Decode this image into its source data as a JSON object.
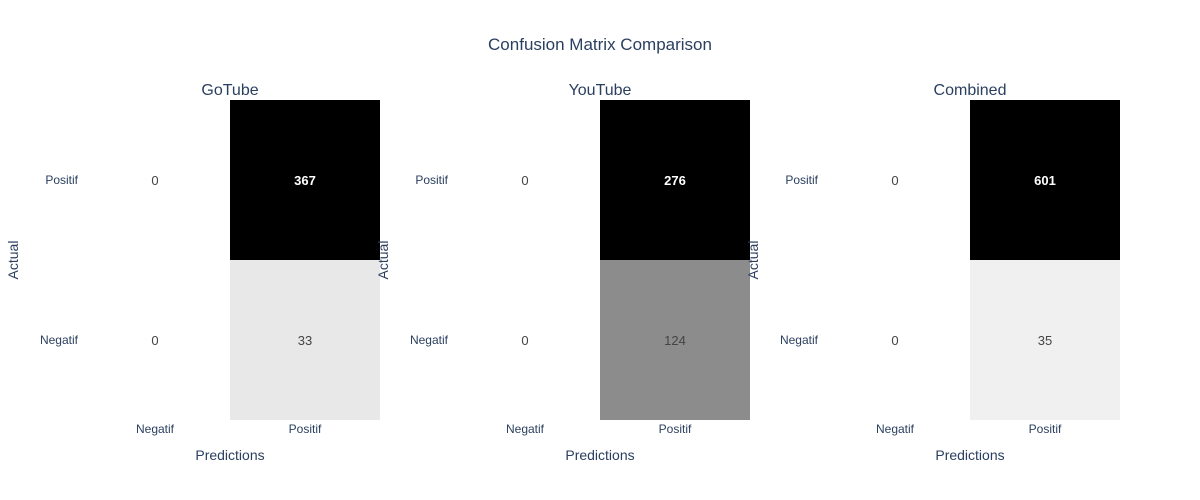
{
  "title": "Confusion Matrix Comparison",
  "chart_data": [
    {
      "type": "heatmap",
      "title": "GoTube",
      "xlabel": "Predictions",
      "ylabel": "Actual",
      "x_categories": [
        "Negatif",
        "Positif"
      ],
      "y_categories": [
        "Positif",
        "Negatif"
      ],
      "z": [
        [
          0,
          367
        ],
        [
          0,
          33
        ]
      ],
      "colorscale": [
        "#ffffff",
        "#000000"
      ],
      "colorbar": false
    },
    {
      "type": "heatmap",
      "title": "YouTube",
      "xlabel": "Predictions",
      "ylabel": "Actual",
      "x_categories": [
        "Negatif",
        "Positif"
      ],
      "y_categories": [
        "Positif",
        "Negatif"
      ],
      "z": [
        [
          0,
          276
        ],
        [
          0,
          124
        ]
      ],
      "colorscale": [
        "#ffffff",
        "#000000"
      ],
      "colorbar": false
    },
    {
      "type": "heatmap",
      "title": "Combined",
      "xlabel": "Predictions",
      "ylabel": "Actual",
      "x_categories": [
        "Negatif",
        "Positif"
      ],
      "y_categories": [
        "Positif",
        "Negatif"
      ],
      "z": [
        [
          0,
          601
        ],
        [
          0,
          35
        ]
      ],
      "colorscale": [
        "#ffffff",
        "#000000"
      ],
      "colorbar": false
    }
  ]
}
